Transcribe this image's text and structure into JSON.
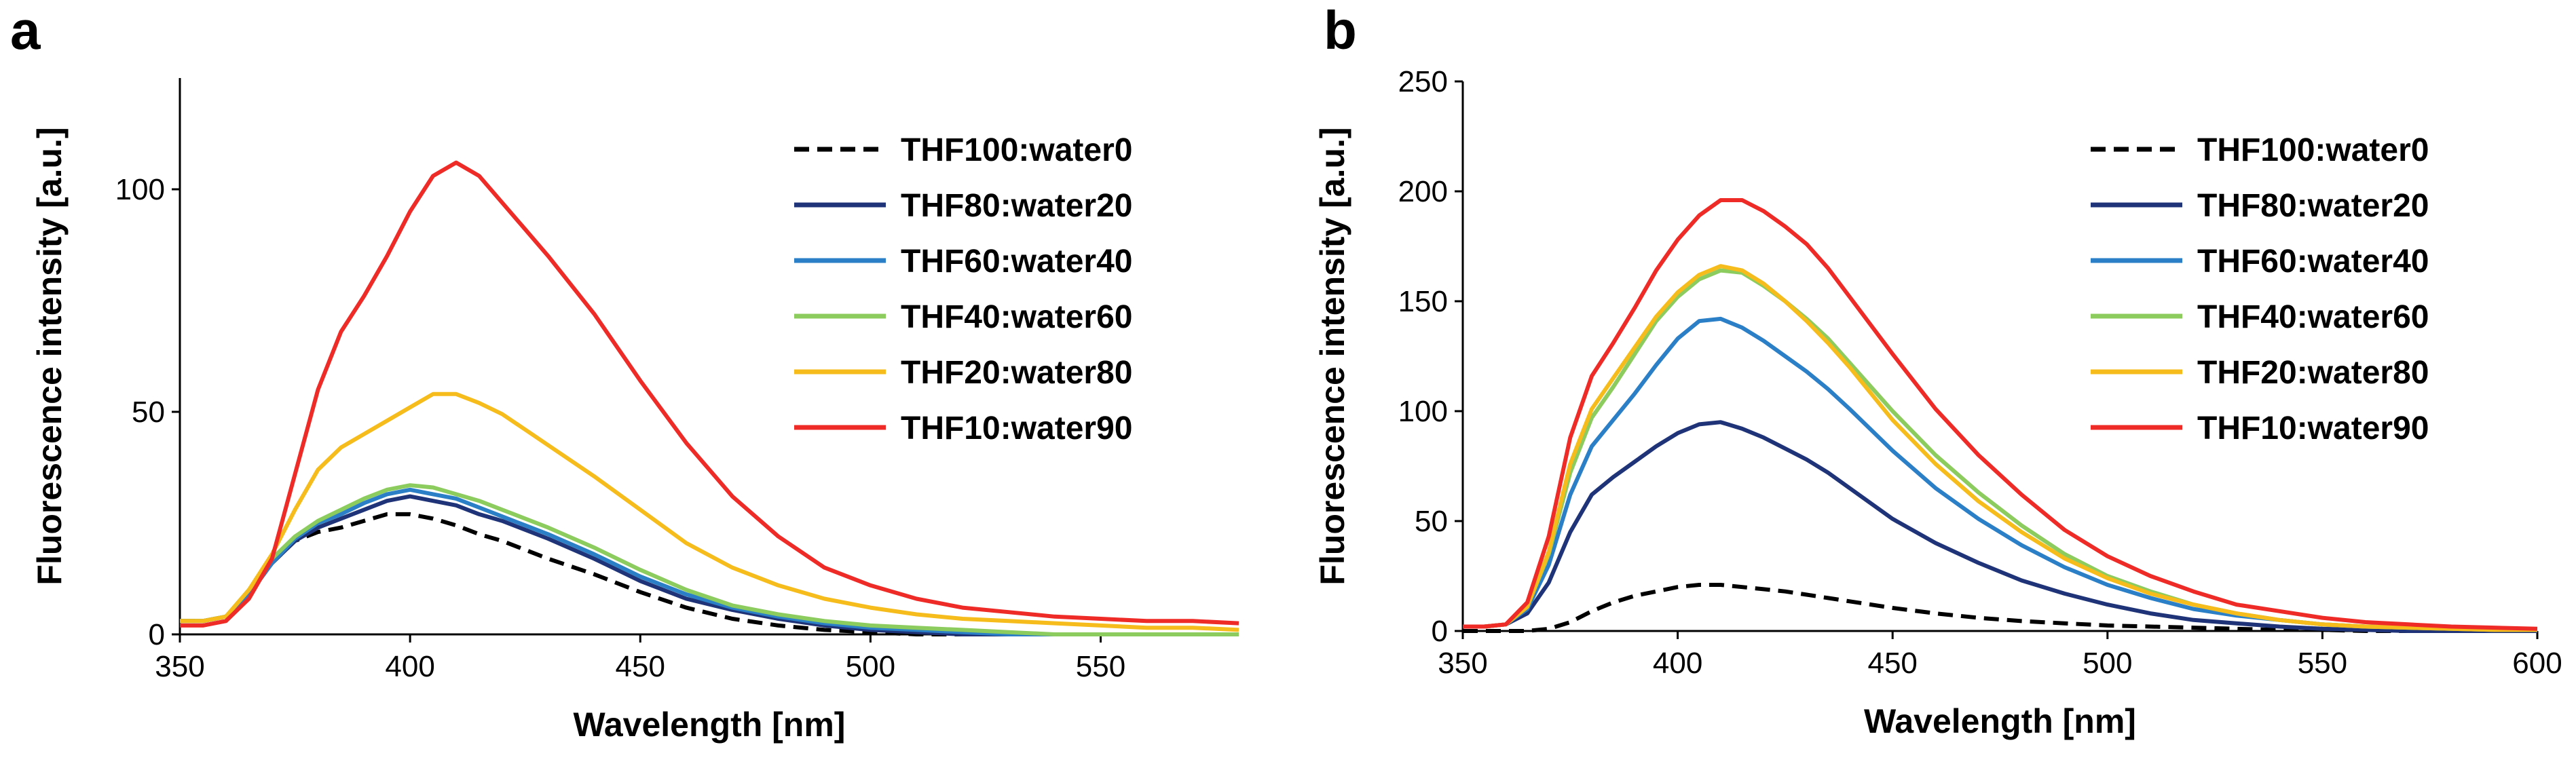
{
  "chart_data": [
    {
      "panel_label": "a",
      "type": "line",
      "xlabel": "Wavelength [nm]",
      "ylabel": "Fluorescence intensity [a.u.]",
      "xlim": [
        350,
        580
      ],
      "ylim": [
        0,
        125
      ],
      "xticks": [
        350,
        400,
        450,
        500,
        550
      ],
      "yticks": [
        0,
        50,
        100
      ],
      "legend_position": "top-right",
      "x": [
        350,
        355,
        360,
        365,
        370,
        375,
        380,
        385,
        390,
        395,
        400,
        405,
        410,
        415,
        420,
        425,
        430,
        440,
        450,
        460,
        470,
        480,
        490,
        500,
        510,
        520,
        530,
        540,
        550,
        560,
        570,
        580
      ],
      "series": [
        {
          "name": "THF100:water0",
          "color": "#000000",
          "dash": true,
          "values": [
            3,
            3,
            4,
            9,
            16,
            21,
            23,
            24,
            25.5,
            27,
            27,
            26,
            24.5,
            22.5,
            21,
            19,
            17,
            13.5,
            9.5,
            6,
            3.5,
            2,
            1,
            0.5,
            0,
            0,
            0,
            0,
            0,
            0,
            0,
            0
          ]
        },
        {
          "name": "THF80:water20",
          "color": "#1f3478",
          "dash": false,
          "values": [
            3,
            3,
            4,
            9,
            16,
            21,
            24,
            26,
            28,
            30,
            31,
            30,
            29,
            27,
            25.5,
            23.5,
            21.5,
            17,
            12,
            8,
            5.5,
            3.5,
            2,
            1,
            0.5,
            0,
            0,
            0,
            0,
            0,
            0,
            0
          ]
        },
        {
          "name": "THF60:water40",
          "color": "#2a7fc6",
          "dash": false,
          "values": [
            3,
            3,
            4,
            9,
            16,
            21.5,
            25,
            27,
            29.5,
            31.5,
            32.5,
            31.5,
            30.5,
            28.5,
            26.5,
            24.5,
            22.5,
            18,
            13,
            9,
            6,
            4,
            2.5,
            1.5,
            1,
            0.5,
            0,
            0,
            0,
            0,
            0,
            0
          ]
        },
        {
          "name": "THF40:water60",
          "color": "#8ccc5e",
          "dash": false,
          "values": [
            3,
            3,
            4,
            10,
            17,
            22,
            25.5,
            28,
            30.5,
            32.5,
            33.5,
            33,
            31.5,
            30,
            28,
            26,
            24,
            19.5,
            14.5,
            10,
            6.5,
            4.5,
            3,
            2,
            1.5,
            1,
            0.5,
            0,
            0,
            0,
            0,
            0
          ]
        },
        {
          "name": "THF20:water80",
          "color": "#f5bc1c",
          "dash": false,
          "values": [
            3,
            3,
            4,
            10,
            18,
            28,
            37,
            42,
            45,
            48,
            51,
            54,
            54,
            52,
            49.5,
            46,
            42.5,
            35.5,
            28,
            20.5,
            15,
            11,
            8,
            6,
            4.5,
            3.5,
            3,
            2.5,
            2,
            1.5,
            1.5,
            1
          ]
        },
        {
          "name": "THF10:water90",
          "color": "#ef2b27",
          "dash": false,
          "values": [
            2,
            2,
            3,
            8,
            17,
            36,
            55,
            68,
            76,
            85,
            95,
            103,
            106,
            103,
            97,
            91,
            85,
            72,
            57,
            43,
            31,
            22,
            15,
            11,
            8,
            6,
            5,
            4,
            3.5,
            3,
            3,
            2.5
          ]
        }
      ]
    },
    {
      "panel_label": "b",
      "type": "line",
      "xlabel": "Wavelength [nm]",
      "ylabel": "Fluorescence intensity [a.u.]",
      "xlim": [
        350,
        600
      ],
      "ylim": [
        0,
        250
      ],
      "xticks": [
        350,
        400,
        450,
        500,
        550,
        600
      ],
      "yticks": [
        0,
        50,
        100,
        150,
        200,
        250
      ],
      "legend_position": "top-right",
      "x": [
        350,
        355,
        360,
        365,
        370,
        375,
        380,
        385,
        390,
        395,
        400,
        405,
        410,
        415,
        420,
        425,
        430,
        435,
        440,
        450,
        460,
        470,
        480,
        490,
        500,
        510,
        520,
        530,
        540,
        550,
        560,
        570,
        580,
        590,
        600
      ],
      "series": [
        {
          "name": "THF100:water0",
          "color": "#000000",
          "dash": true,
          "values": [
            0,
            0,
            0,
            0,
            1,
            4,
            9,
            13,
            16,
            18,
            20,
            21,
            21,
            20,
            19,
            18,
            16.5,
            15,
            13.5,
            10.5,
            8,
            6,
            4.5,
            3.5,
            2.5,
            2,
            1.5,
            1,
            0.5,
            0.5,
            0,
            0,
            0,
            0,
            0
          ]
        },
        {
          "name": "THF80:water20",
          "color": "#1f3478",
          "dash": false,
          "values": [
            2,
            2,
            3,
            8,
            22,
            45,
            62,
            70,
            77,
            84,
            90,
            94,
            95,
            92,
            88,
            83,
            78,
            72,
            65,
            51,
            40,
            31,
            23,
            17,
            12,
            8,
            5,
            3.5,
            2,
            1,
            0.5,
            0,
            0,
            0,
            0
          ]
        },
        {
          "name": "THF60:water40",
          "color": "#2a7fc6",
          "dash": false,
          "values": [
            2,
            2,
            3,
            10,
            30,
            62,
            84,
            96,
            108,
            121,
            133,
            141,
            142,
            138,
            132,
            125,
            118,
            110,
            101,
            82,
            65,
            51,
            39,
            29,
            21,
            15,
            10,
            7,
            5,
            3,
            2,
            1.5,
            1,
            0.5,
            0.5
          ]
        },
        {
          "name": "THF40:water60",
          "color": "#8ccc5e",
          "dash": false,
          "values": [
            2,
            2,
            3,
            11,
            35,
            72,
            97,
            111,
            126,
            141,
            152,
            160,
            164,
            163,
            157,
            150,
            142,
            133,
            122,
            100,
            80,
            63,
            48,
            35,
            25,
            18,
            12,
            8,
            5,
            3,
            2,
            1.5,
            1,
            0.5,
            0.5
          ]
        },
        {
          "name": "THF20:water80",
          "color": "#f5bc1c",
          "dash": false,
          "values": [
            2,
            2,
            3,
            11,
            36,
            76,
            101,
            115,
            129,
            143,
            154,
            162,
            166,
            164,
            158,
            150,
            141,
            131,
            120,
            96,
            76,
            59,
            45,
            33,
            24,
            17,
            12,
            8,
            5,
            3,
            2,
            1.5,
            1,
            0.5,
            0.5
          ]
        },
        {
          "name": "THF10:water90",
          "color": "#ef2b27",
          "dash": false,
          "values": [
            2,
            2,
            3,
            13,
            43,
            88,
            116,
            131,
            147,
            164,
            178,
            189,
            196,
            196,
            191,
            184,
            176,
            165,
            152,
            126,
            101,
            80,
            62,
            46,
            34,
            25,
            18,
            12,
            9,
            6,
            4,
            3,
            2,
            1.5,
            1
          ]
        }
      ]
    }
  ]
}
